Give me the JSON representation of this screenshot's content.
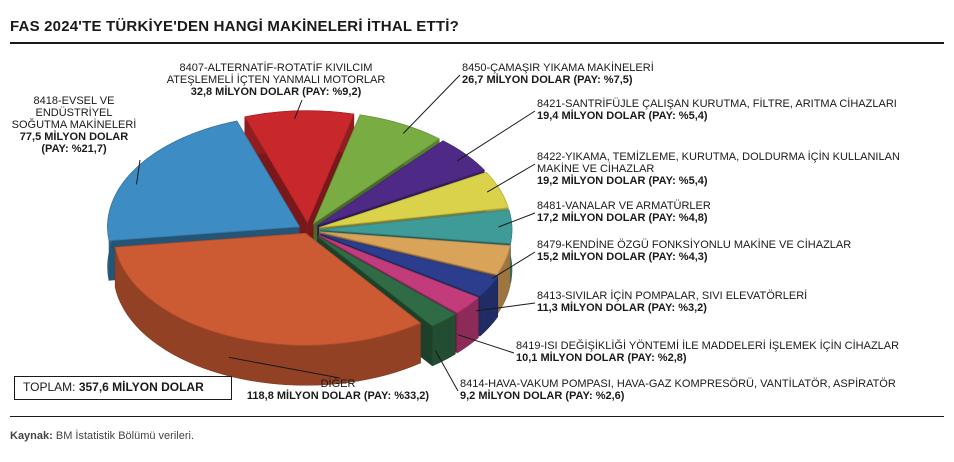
{
  "title": "FAS 2024'TE TÜRKİYE'DEN HANGİ MAKİNELERİ İTHAL ETTİ?",
  "total": {
    "label": "TOPLAM:",
    "value": "357,6 MİLYON DOLAR"
  },
  "source": {
    "label": "Kaynak:",
    "text": "BM İstatistik Bölümü verileri."
  },
  "chart_data": {
    "type": "pie",
    "style": "3d-exploded",
    "unit": "MİLYON DOLAR",
    "slices": [
      {
        "name": "8450-ÇAMAŞIR YIKAMA MAKİNELERİ",
        "value": 26.7,
        "share": 7.5,
        "value_label": "26,7 MİLYON DOLAR (PAY: %7,5)",
        "color": "#79ad44"
      },
      {
        "name": "8421-SANTRİFÜJLE ÇALIŞAN KURUTMA, FİLTRE, ARITMA CİHAZLARI",
        "value": 19.4,
        "share": 5.4,
        "value_label": "19,4 MİLYON DOLAR (PAY: %5,4)",
        "color": "#4e2a86"
      },
      {
        "name": "8422-YIKAMA, TEMİZLEME, KURUTMA, DOLDURMA İÇİN KULLANILAN MAKİNE VE CİHAZLAR",
        "value": 19.2,
        "share": 5.4,
        "value_label": "19,2 MİLYON DOLAR (PAY: %5,4)",
        "color": "#d9d24a"
      },
      {
        "name": "8481-VANALAR VE ARMATÜRLER",
        "value": 17.2,
        "share": 4.8,
        "value_label": "17,2 MİLYON DOLAR (PAY: %4,8)",
        "color": "#3e9b98"
      },
      {
        "name": "8479-KENDİNE ÖZGÜ FONKSİYONLU MAKİNE VE CİHAZLAR",
        "value": 15.2,
        "share": 4.3,
        "value_label": "15,2 MİLYON DOLAR (PAY: %4,3)",
        "color": "#d9a35a"
      },
      {
        "name": "8413-SIVILAR İÇİN POMPALAR, SIVI ELEVATÖRLERİ",
        "value": 11.3,
        "share": 3.2,
        "value_label": "11,3 MİLYON DOLAR (PAY: %3,2)",
        "color": "#2b3d8c"
      },
      {
        "name": "8419-ISI DEĞİŞİKLİĞİ YÖNTEMİ İLE MADDELERİ İŞLEMEK İÇİN CİHAZLAR",
        "value": 10.1,
        "share": 2.8,
        "value_label": "10,1 MİLYON DOLAR (PAY: %2,8)",
        "color": "#c23b7a"
      },
      {
        "name": "8414-HAVA-VAKUM POMPASI, HAVA-GAZ KOMPRESÖRÜ, VANTİLATÖR, ASPİRATÖR",
        "value": 9.2,
        "share": 2.6,
        "value_label": "9,2 MİLYON DOLAR (PAY: %2,6)",
        "color": "#2f6b45"
      },
      {
        "name": "DİĞER",
        "value": 118.8,
        "share": 33.2,
        "value_label": "118,8 MİLYON DOLAR (PAY: %33,2)",
        "color": "#cc5a32"
      },
      {
        "name": "8418-EVSEL VE ENDÜSTRİYEL SOĞUTMA MAKİNELERİ",
        "value": 77.5,
        "share": 21.7,
        "value_label": "77,5 MİLYON DOLAR (PAY: %21,7)",
        "color": "#3d8cc3"
      },
      {
        "name": "8407-ALTERNATİF-ROTATİF KIVILCIM ATEŞLEMELİ İÇTEN YANMALI MOTORLAR",
        "value": 32.8,
        "share": 9.2,
        "value_label": "32,8 MİLYON DOLAR (PAY: %9,2)",
        "color": "#c8282c"
      }
    ]
  }
}
